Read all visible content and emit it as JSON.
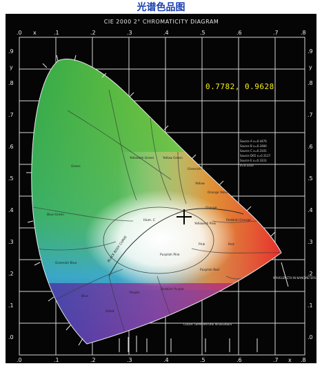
{
  "window": {
    "title": "光谱色品图"
  },
  "diagram": {
    "title": "CIE 2000 2° CHROMATICITY DIAGRAM",
    "axis_ticks": [
      ".0",
      ".1",
      ".2",
      ".3",
      ".4",
      ".5",
      ".6",
      ".7",
      ".8"
    ],
    "y_ticks": [
      ".9",
      ".8",
      ".7",
      ".6",
      ".5",
      ".4",
      ".3",
      ".2",
      ".1",
      ".0"
    ],
    "x_axis_letter": "x",
    "y_axis_letter": "y",
    "region_labels": {
      "green": "Green",
      "yellowish_green": "Yellowish Green",
      "yellow_green": "Yellow Green",
      "greenish_yellow": "Greenish Yellow",
      "yellow": "Yellow",
      "orange_yellow": "Orange Yellow",
      "orange": "Orange",
      "blue_green": "Blue Green",
      "yellowish_pink": "Yellowish Pink",
      "reddish_orange": "Reddish Orange",
      "greenish_blue": "Greenish Blue",
      "pink": "Pink",
      "red": "Red",
      "purplish_pink": "Purplish Pink",
      "purplish_red": "Purplish Red",
      "blue": "Blue",
      "purple": "Purple",
      "reddish_purple": "Reddish Purple",
      "violet": "Violet",
      "white": "Illum. C",
      "black_body": "BLACK BODY CURVE",
      "color_temp": "COLOR TEMPERATURE IN DEGREES",
      "wavelength_note": "WAVELENGTH IN NANOMETERS"
    },
    "source_legend": [
      "Source A x=0.4476",
      "Source B x=0.3484",
      "Source C x=0.3101",
      "Source D65 x=0.3127",
      "Source E x=0.3333",
      "x=0.3333"
    ]
  },
  "readout": {
    "coordinates": "0.7782, 0.9628"
  },
  "colors": {
    "title": "#1a3fb0",
    "background": "#050505",
    "grid": "#d8d8d8",
    "readout": "#f6ef1a"
  },
  "cursor_icon": "crosshair-icon"
}
